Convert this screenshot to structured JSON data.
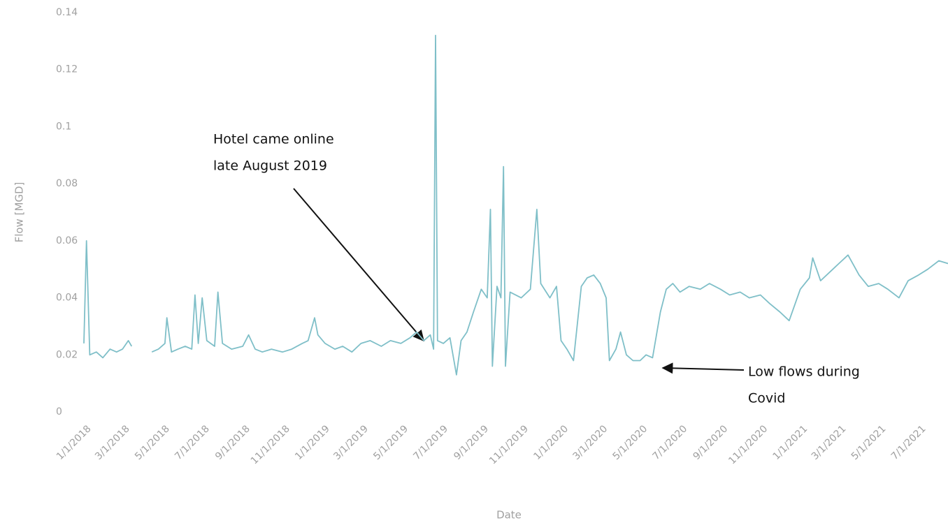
{
  "chart_data": {
    "type": "line",
    "y_label": "Flow [MGD]",
    "x_label": "Date",
    "color": "#7fbfc8",
    "x": [
      "1/1/2018",
      "1/5/2018",
      "1/10/2018",
      "1/20/2018",
      "1/30/2018",
      "2/10/2018",
      "2/20/2018",
      "3/1/2018",
      "3/10/2018",
      "3/15/2018",
      "3/25/2018",
      "4/15/2018",
      "4/25/2018",
      "5/5/2018",
      "5/8/2018",
      "5/15/2018",
      "5/25/2018",
      "6/5/2018",
      "6/15/2018",
      "6/20/2018",
      "6/25/2018",
      "7/1/2018",
      "7/8/2018",
      "7/20/2018",
      "7/25/2018",
      "8/1/2018",
      "8/15/2018",
      "9/1/2018",
      "9/10/2018",
      "9/20/2018",
      "10/1/2018",
      "10/15/2018",
      "11/1/2018",
      "11/15/2018",
      "12/1/2018",
      "12/10/2018",
      "12/20/2018",
      "12/25/2018",
      "1/5/2019",
      "1/20/2019",
      "2/1/2019",
      "2/15/2019",
      "3/1/2019",
      "3/15/2019",
      "4/1/2019",
      "4/15/2019",
      "5/1/2019",
      "5/15/2019",
      "5/25/2019",
      "6/5/2019",
      "6/15/2019",
      "6/20/2019",
      "6/23/2019",
      "6/26/2019",
      "7/5/2019",
      "7/15/2019",
      "7/25/2019",
      "8/1/2019",
      "8/10/2019",
      "8/20/2019",
      "9/1/2019",
      "9/10/2019",
      "9/15/2019",
      "9/18/2019",
      "9/25/2019",
      "10/1/2019",
      "10/5/2019",
      "10/8/2019",
      "10/15/2019",
      "11/1/2019",
      "11/15/2019",
      "11/25/2019",
      "12/1/2019",
      "12/15/2019",
      "12/25/2019",
      "1/1/2020",
      "1/10/2020",
      "1/20/2020",
      "2/1/2020",
      "2/10/2020",
      "2/20/2020",
      "3/1/2020",
      "3/10/2020",
      "3/15/2020",
      "3/25/2020",
      "4/1/2020",
      "4/10/2020",
      "4/20/2020",
      "5/1/2020",
      "5/10/2020",
      "5/20/2020",
      "6/1/2020",
      "6/10/2020",
      "6/20/2020",
      "7/1/2020",
      "7/15/2020",
      "8/1/2020",
      "8/15/2020",
      "9/1/2020",
      "9/15/2020",
      "10/1/2020",
      "10/15/2020",
      "11/1/2020",
      "11/15/2020",
      "12/1/2020",
      "12/15/2020",
      "1/1/2021",
      "1/15/2021",
      "1/20/2021",
      "2/1/2021",
      "2/15/2021",
      "3/1/2021",
      "3/15/2021",
      "4/1/2021",
      "4/15/2021",
      "5/1/2021",
      "5/15/2021",
      "6/1/2021",
      "6/15/2021",
      "7/1/2021",
      "7/15/2021",
      "8/1/2021",
      "8/15/2021"
    ],
    "values": [
      0.024,
      0.06,
      0.02,
      0.021,
      0.019,
      0.022,
      0.021,
      0.022,
      0.025,
      0.023,
      null,
      0.021,
      0.022,
      0.024,
      0.033,
      0.021,
      0.022,
      0.023,
      0.022,
      0.041,
      0.024,
      0.04,
      0.025,
      0.023,
      0.042,
      0.024,
      0.022,
      0.023,
      0.027,
      0.022,
      0.021,
      0.022,
      0.021,
      0.022,
      0.024,
      0.025,
      0.033,
      0.027,
      0.024,
      0.022,
      0.023,
      0.021,
      0.024,
      0.025,
      0.023,
      0.025,
      0.024,
      0.026,
      0.028,
      0.025,
      0.027,
      0.022,
      0.132,
      0.025,
      0.024,
      0.026,
      0.013,
      0.025,
      0.028,
      0.035,
      0.043,
      0.04,
      0.071,
      0.016,
      0.044,
      0.04,
      0.086,
      0.016,
      0.042,
      0.04,
      0.043,
      0.071,
      0.045,
      0.04,
      0.044,
      0.025,
      0.022,
      0.018,
      0.044,
      0.047,
      0.048,
      0.045,
      0.04,
      0.018,
      0.022,
      0.028,
      0.02,
      0.018,
      0.018,
      0.02,
      0.019,
      0.035,
      0.043,
      0.045,
      0.042,
      0.044,
      0.043,
      0.045,
      0.043,
      0.041,
      0.042,
      0.04,
      0.041,
      0.038,
      0.035,
      0.032,
      0.043,
      0.047,
      0.054,
      0.046,
      0.049,
      0.052,
      0.055,
      0.048,
      0.044,
      0.045,
      0.043,
      0.04,
      0.046,
      0.048,
      0.05,
      0.053,
      0.052
    ],
    "xlim": [
      "1/1/2018",
      "8/15/2021"
    ],
    "xticks": [
      "1/1/2018",
      "3/1/2018",
      "5/1/2018",
      "7/1/2018",
      "9/1/2018",
      "11/1/2018",
      "1/1/2019",
      "3/1/2019",
      "5/1/2019",
      "7/1/2019",
      "9/1/2019",
      "11/1/2019",
      "1/1/2020",
      "3/1/2020",
      "5/1/2020",
      "7/1/2020",
      "9/1/2020",
      "11/1/2020",
      "1/1/2021",
      "3/1/2021",
      "5/1/2021",
      "7/1/2021"
    ],
    "ylim": [
      0,
      0.14
    ],
    "yticks": [
      0,
      0.02,
      0.04,
      0.06,
      0.08,
      0.1,
      0.12,
      0.14
    ],
    "grid": false,
    "annotations": [
      {
        "lines": [
          "Hotel came online",
          "late August 2019"
        ]
      },
      {
        "lines": [
          "Low flows during",
          "Covid"
        ]
      }
    ]
  }
}
